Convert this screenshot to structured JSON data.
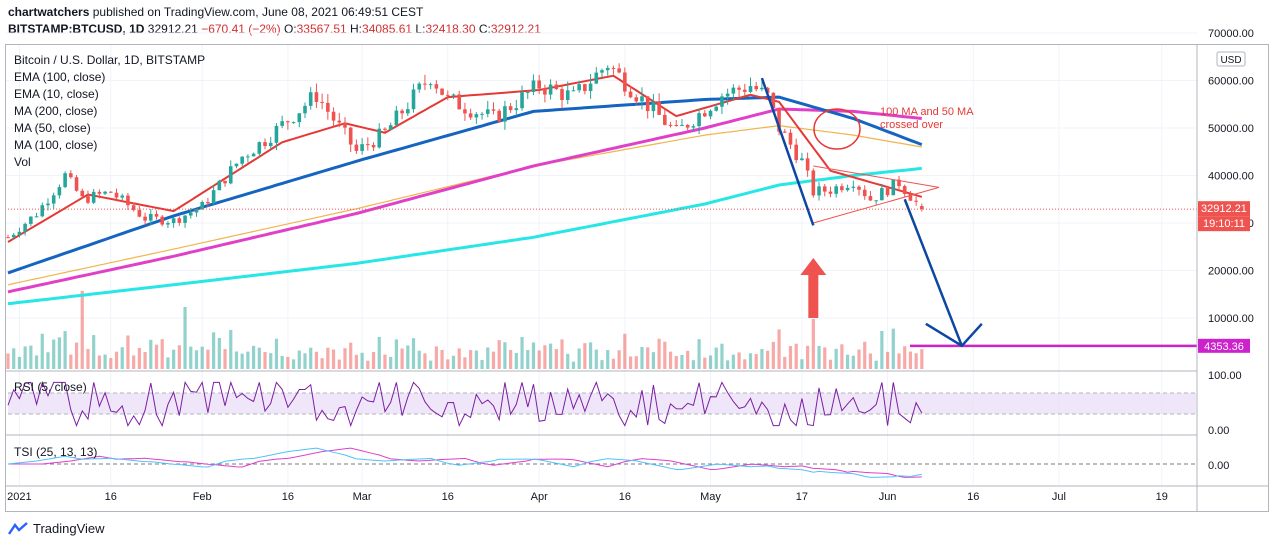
{
  "header": {
    "publisher": "chartwatchers",
    "published_text": "published on TradingView.com, June 08, 2021 06:49:51 CEST",
    "symbol": "BITSTAMP:BTCUSD, 1D",
    "last": "32912.21",
    "change": "−670.41 (−2%)",
    "open_label": "O:",
    "open": "33567.51",
    "high_label": "H:",
    "high": "34085.61",
    "low_label": "L:",
    "low": "32418.30",
    "close_label": "C:",
    "close": "32912.21"
  },
  "legend": {
    "title": "Bitcoin / U.S. Dollar, 1D, BITSTAMP",
    "items": [
      "EMA (100, close)",
      "EMA (10, close)",
      "MA (200, close)",
      "MA (50, close)",
      "MA (100, close)",
      "Vol"
    ]
  },
  "price_axis": {
    "ticks": [
      "70000.00",
      "60000.00",
      "50000.00",
      "40000.00",
      "30000.00",
      "20000.00",
      "10000.00"
    ],
    "currency": "USD",
    "price_tag": "32912.21",
    "countdown": "19:10:11",
    "support_tag": "4353.36"
  },
  "rsi": {
    "label": "RSI (5, close)",
    "ticks": [
      "100.00",
      "0.00"
    ]
  },
  "tsi": {
    "label": "TSI (25, 13, 13)",
    "ticks": [
      "0.00"
    ]
  },
  "time_axis": [
    "2021",
    "16",
    "Feb",
    "16",
    "Mar",
    "16",
    "Apr",
    "16",
    "May",
    "17",
    "Jun",
    "16",
    "Jul",
    "19"
  ],
  "annotation": "100 MA and 50 MA\ncrossed over",
  "colors": {
    "up": "#26a69a",
    "down": "#ef5350",
    "ema10": "#e53935",
    "ma50": "#1565c0",
    "ma100": "#e040c8",
    "ema100": "#f0b44c",
    "ma200": "#26e6e6",
    "arrow": "#0d47a1",
    "support": "#cc22cc",
    "rsi": "#7b1fa2",
    "rsi_band": "#eadcf7"
  },
  "brand": "TradingView",
  "chart_data": {
    "type": "candlestick",
    "title": "Bitcoin / U.S. Dollar, 1D, BITSTAMP",
    "x_range": [
      "2020-12-29",
      "2021-07-25"
    ],
    "ylim": [
      0,
      72000
    ],
    "close_series_approx": [
      [
        "2020-12-29",
        27000
      ],
      [
        "2021-01-03",
        32000
      ],
      [
        "2021-01-08",
        40000
      ],
      [
        "2021-01-11",
        35000
      ],
      [
        "2021-01-16",
        36500
      ],
      [
        "2021-01-22",
        31000
      ],
      [
        "2021-01-27",
        30500
      ],
      [
        "2021-02-01",
        33500
      ],
      [
        "2021-02-08",
        44000
      ],
      [
        "2021-02-12",
        47500
      ],
      [
        "2021-02-21",
        57000
      ],
      [
        "2021-02-28",
        45000
      ],
      [
        "2021-03-05",
        49000
      ],
      [
        "2021-03-13",
        61000
      ],
      [
        "2021-03-16",
        56000
      ],
      [
        "2021-03-24",
        52000
      ],
      [
        "2021-04-01",
        59000
      ],
      [
        "2021-04-07",
        56500
      ],
      [
        "2021-04-13",
        63500
      ],
      [
        "2021-04-19",
        56000
      ],
      [
        "2021-04-25",
        49000
      ],
      [
        "2021-05-03",
        57000
      ],
      [
        "2021-05-08",
        59000
      ],
      [
        "2021-05-11",
        56500
      ],
      [
        "2021-05-13",
        50000
      ],
      [
        "2021-05-17",
        43000
      ],
      [
        "2021-05-19",
        36500
      ],
      [
        "2021-05-22",
        37000
      ],
      [
        "2021-05-26",
        39000
      ],
      [
        "2021-05-29",
        35000
      ],
      [
        "2021-06-03",
        38500
      ],
      [
        "2021-06-07",
        32912
      ]
    ],
    "indicators": {
      "EMA (10, close)": [
        [
          "2020-12-29",
          26000
        ],
        [
          "2021-01-12",
          36000
        ],
        [
          "2021-01-27",
          32500
        ],
        [
          "2021-02-15",
          47000
        ],
        [
          "2021-02-26",
          51000
        ],
        [
          "2021-03-05",
          49000
        ],
        [
          "2021-03-16",
          56500
        ],
        [
          "2021-04-01",
          58000
        ],
        [
          "2021-04-14",
          61000
        ],
        [
          "2021-04-25",
          52500
        ],
        [
          "2021-05-08",
          57000
        ],
        [
          "2021-05-13",
          55500
        ],
        [
          "2021-05-22",
          41000
        ],
        [
          "2021-06-07",
          35500
        ]
      ],
      "MA (50, close)": [
        [
          "2020-12-29",
          19500
        ],
        [
          "2021-01-27",
          31500
        ],
        [
          "2021-02-28",
          43000
        ],
        [
          "2021-03-31",
          53500
        ],
        [
          "2021-04-30",
          56000
        ],
        [
          "2021-05-13",
          56500
        ],
        [
          "2021-05-26",
          52000
        ],
        [
          "2021-06-07",
          46500
        ]
      ],
      "MA (100, close)": [
        [
          "2020-12-29",
          15500
        ],
        [
          "2021-01-27",
          23000
        ],
        [
          "2021-02-28",
          32000
        ],
        [
          "2021-03-31",
          42000
        ],
        [
          "2021-04-30",
          50000
        ],
        [
          "2021-05-13",
          54000
        ],
        [
          "2021-05-26",
          53500
        ],
        [
          "2021-06-07",
          52000
        ]
      ],
      "EMA (100, close)": [
        [
          "2020-12-29",
          17000
        ],
        [
          "2021-01-27",
          24500
        ],
        [
          "2021-02-28",
          33000
        ],
        [
          "2021-03-31",
          42000
        ],
        [
          "2021-04-30",
          48500
        ],
        [
          "2021-05-13",
          50500
        ],
        [
          "2021-05-26",
          48500
        ],
        [
          "2021-06-07",
          46000
        ]
      ],
      "MA (200, close)": [
        [
          "2020-12-29",
          13000
        ],
        [
          "2021-01-27",
          17000
        ],
        [
          "2021-02-28",
          21500
        ],
        [
          "2021-03-31",
          27000
        ],
        [
          "2021-04-30",
          34000
        ],
        [
          "2021-05-13",
          38000
        ],
        [
          "2021-05-26",
          40000
        ],
        [
          "2021-06-07",
          41500
        ]
      ]
    },
    "horizontal_line": 4353.36,
    "rsi_bounds": [
      0,
      100
    ],
    "tsi_level": 0
  }
}
